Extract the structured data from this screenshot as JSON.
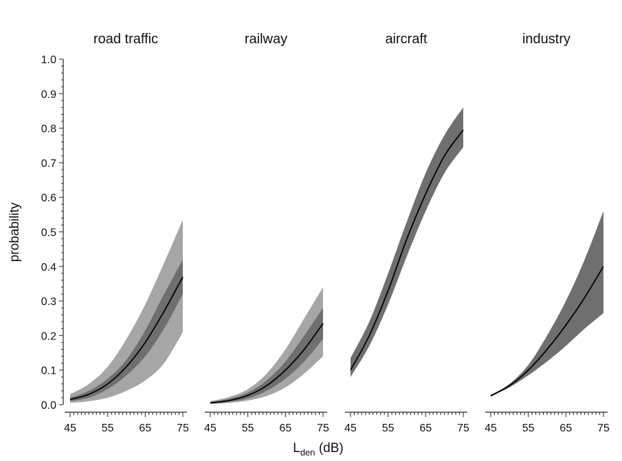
{
  "chart_data": {
    "type": "area",
    "ylabel": "probability",
    "xlabel": {
      "main": "L",
      "subscript": "den",
      "suffix": " (dB)"
    },
    "ylim": [
      0,
      1.0
    ],
    "xlim": [
      45,
      75
    ],
    "y_ticks": [
      "0.0",
      "0.1",
      "0.2",
      "0.3",
      "0.4",
      "0.5",
      "0.6",
      "0.7",
      "0.8",
      "0.9",
      "1.0"
    ],
    "x_ticks": [
      "45",
      "55",
      "65",
      "75"
    ],
    "grid": false,
    "colors": {
      "outer_band": "#a6a6a6",
      "inner_band": "#6f6f6f",
      "line": "#000000"
    },
    "panels": [
      {
        "title": "road traffic",
        "x": [
          45,
          50,
          55,
          60,
          65,
          70,
          75
        ],
        "mean": [
          0.015,
          0.03,
          0.06,
          0.11,
          0.18,
          0.27,
          0.37
        ],
        "inner_lower": [
          0.01,
          0.02,
          0.045,
          0.085,
          0.14,
          0.22,
          0.32
        ],
        "inner_upper": [
          0.02,
          0.04,
          0.075,
          0.13,
          0.215,
          0.32,
          0.42
        ],
        "outer_lower": [
          0.005,
          0.01,
          0.02,
          0.04,
          0.07,
          0.12,
          0.21
        ],
        "outer_upper": [
          0.03,
          0.06,
          0.11,
          0.19,
          0.29,
          0.41,
          0.535
        ]
      },
      {
        "title": "railway",
        "x": [
          45,
          50,
          55,
          60,
          65,
          70,
          75
        ],
        "mean": [
          0.005,
          0.012,
          0.027,
          0.055,
          0.1,
          0.16,
          0.235
        ],
        "inner_lower": [
          0.003,
          0.008,
          0.018,
          0.04,
          0.075,
          0.125,
          0.19
        ],
        "inner_upper": [
          0.008,
          0.017,
          0.035,
          0.07,
          0.125,
          0.2,
          0.28
        ],
        "outer_lower": [
          0.002,
          0.005,
          0.012,
          0.025,
          0.05,
          0.09,
          0.14
        ],
        "outer_upper": [
          0.01,
          0.022,
          0.045,
          0.09,
          0.16,
          0.25,
          0.34
        ]
      },
      {
        "title": "aircraft",
        "x": [
          45,
          50,
          55,
          60,
          65,
          70,
          75
        ],
        "mean": [
          0.1,
          0.2,
          0.33,
          0.48,
          0.61,
          0.72,
          0.795
        ],
        "inner_lower": [
          0.08,
          0.17,
          0.29,
          0.43,
          0.56,
          0.67,
          0.745
        ],
        "inner_upper": [
          0.135,
          0.24,
          0.38,
          0.53,
          0.67,
          0.78,
          0.86
        ]
      },
      {
        "title": "industry",
        "x": [
          45,
          50,
          55,
          60,
          65,
          70,
          75
        ],
        "mean": [
          0.025,
          0.055,
          0.1,
          0.16,
          0.23,
          0.31,
          0.4
        ],
        "inner_lower": [
          0.025,
          0.05,
          0.085,
          0.125,
          0.17,
          0.22,
          0.265
        ],
        "inner_upper": [
          0.028,
          0.06,
          0.115,
          0.2,
          0.3,
          0.42,
          0.56
        ]
      }
    ]
  }
}
